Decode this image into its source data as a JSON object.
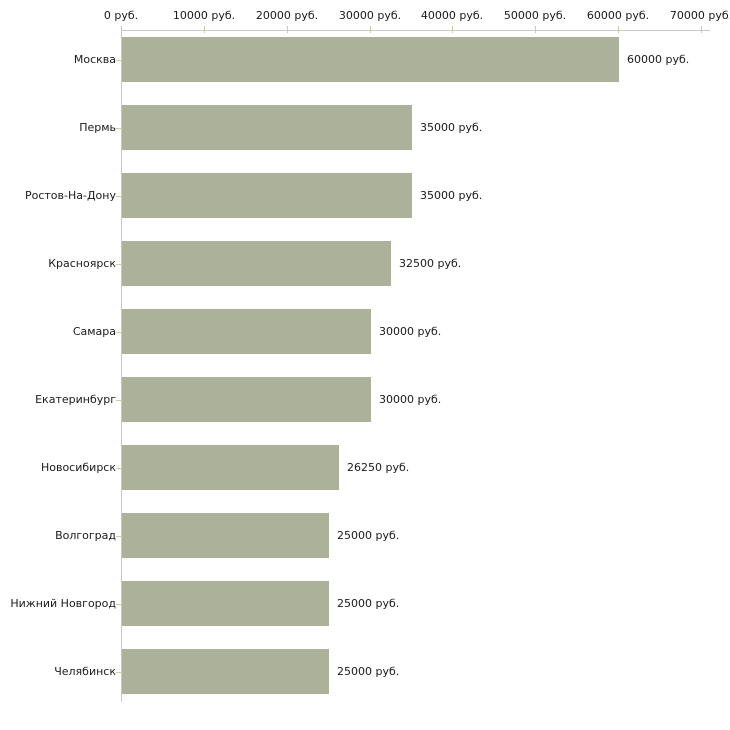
{
  "chart_data": {
    "type": "bar",
    "orientation": "horizontal",
    "title": "",
    "xlabel": "",
    "ylabel": "",
    "categories": [
      "Москва",
      "Пермь",
      "Ростов-На-Дону",
      "Красноярск",
      "Самара",
      "Екатеринбург",
      "Новосибирск",
      "Волгоград",
      "Нижний Новгород",
      "Челябинск"
    ],
    "values": [
      60000,
      35000,
      35000,
      32500,
      30000,
      30000,
      26250,
      25000,
      25000,
      25000
    ],
    "value_labels": [
      "60000 руб.",
      "35000 руб.",
      "35000 руб.",
      "32500 руб.",
      "30000 руб.",
      "30000 руб.",
      "26250 руб.",
      "25000 руб.",
      "25000 руб.",
      "25000 руб."
    ],
    "x_ticks": {
      "values": [
        0,
        10000,
        20000,
        30000,
        40000,
        50000,
        60000,
        70000
      ],
      "labels": [
        "0 руб.",
        "10000 руб.",
        "20000 руб.",
        "30000 руб.",
        "40000 руб.",
        "50000 руб.",
        "60000 руб.",
        "70000 руб."
      ]
    },
    "xlim": [
      0,
      70000
    ],
    "grid": false,
    "legend": false,
    "colors": {
      "bar": "#acb29a",
      "axis_line": "#c8c8c8",
      "tick_mark": "#cccc9e",
      "text": "#1a1a1a",
      "background": "#ffffff"
    }
  }
}
